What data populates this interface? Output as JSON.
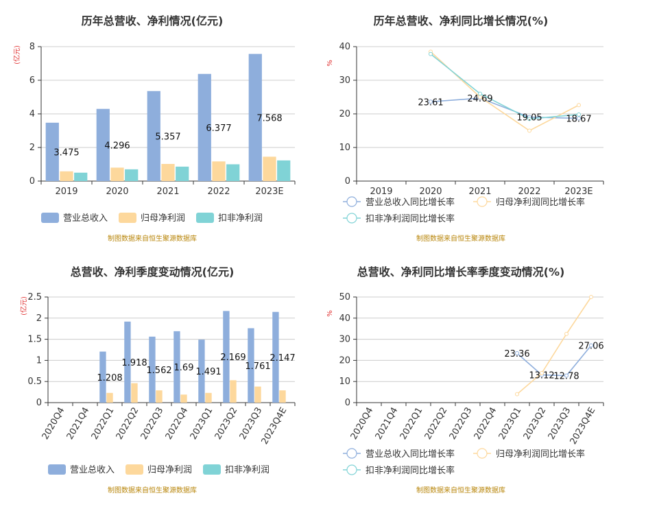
{
  "colors": {
    "revenue": "#8eaedc",
    "net_profit": "#fdd89c",
    "deducted_profit": "#80d3d6",
    "axis": "#333333",
    "grid": "#cccccc",
    "unit": "#e03030",
    "source": "#b8860b"
  },
  "source_text": "制图数据来自恒生聚源数据库",
  "chart_data": [
    {
      "id": "annual-amounts",
      "type": "bar",
      "title": "历年总营收、净利情况(亿元)",
      "ylabel": "(亿元)",
      "categories": [
        "2019",
        "2020",
        "2021",
        "2022",
        "2023E"
      ],
      "ylim": [
        0,
        8
      ],
      "yticks": [
        0,
        2,
        4,
        6,
        8
      ],
      "grid": true,
      "legend_position": "bottom",
      "series": [
        {
          "name": "营业总收入",
          "values": [
            3.475,
            4.296,
            5.357,
            6.377,
            7.568
          ],
          "labels": [
            "3.475",
            "4.296",
            "5.357",
            "6.377",
            "7.568"
          ]
        },
        {
          "name": "归母净利润",
          "values": [
            0.58,
            0.8,
            1.02,
            1.17,
            1.45
          ]
        },
        {
          "name": "扣非净利润",
          "values": [
            0.5,
            0.7,
            0.86,
            1.0,
            1.23
          ]
        }
      ]
    },
    {
      "id": "annual-growth",
      "type": "line",
      "title": "历年总营收、净利同比增长情况(%)",
      "ylabel": "%",
      "categories": [
        "2019",
        "2020",
        "2021",
        "2022",
        "2023E"
      ],
      "ylim": [
        0,
        40
      ],
      "yticks": [
        0,
        10,
        20,
        30,
        40
      ],
      "grid": true,
      "legend_position": "bottom",
      "series": [
        {
          "name": "营业总收入同比增长率",
          "values": [
            null,
            23.61,
            24.69,
            19.05,
            18.67
          ],
          "labels": [
            null,
            "23.61",
            "24.69",
            "19.05",
            "18.67"
          ]
        },
        {
          "name": "归母净利润同比增长率",
          "values": [
            null,
            38.5,
            25.0,
            15.0,
            22.6
          ]
        },
        {
          "name": "扣非净利润同比增长率",
          "values": [
            null,
            37.8,
            26.0,
            18.5,
            19.8
          ]
        }
      ]
    },
    {
      "id": "quarterly-amounts",
      "type": "bar",
      "title": "总营收、净利季度变动情况(亿元)",
      "ylabel": "(亿元)",
      "categories": [
        "2020Q4",
        "2021Q4",
        "2022Q1",
        "2022Q2",
        "2022Q3",
        "2022Q4",
        "2023Q1",
        "2023Q2",
        "2023Q3",
        "2023Q4E"
      ],
      "ylim": [
        0,
        2.5
      ],
      "yticks": [
        0,
        0.5,
        1,
        1.5,
        2,
        2.5
      ],
      "ytick_labels": [
        "0",
        "0.5",
        "1",
        "1.5",
        "2",
        "2.5"
      ],
      "grid": true,
      "legend_position": "bottom",
      "series": [
        {
          "name": "营业总收入",
          "values": [
            null,
            null,
            1.208,
            1.918,
            1.562,
            1.69,
            1.491,
            2.169,
            1.761,
            2.147
          ],
          "labels": [
            null,
            null,
            "1.208",
            "1.918",
            "1.562",
            "1.69",
            "1.491",
            "2.169",
            "1.761",
            "2.147"
          ]
        },
        {
          "name": "归母净利润",
          "values": [
            null,
            null,
            0.23,
            0.46,
            0.29,
            0.19,
            0.23,
            0.53,
            0.38,
            0.29
          ]
        },
        {
          "name": "扣非净利润",
          "values": [
            null,
            null,
            null,
            null,
            null,
            null,
            null,
            null,
            null,
            null
          ]
        }
      ]
    },
    {
      "id": "quarterly-growth",
      "type": "line",
      "title": "总营收、净利同比增长率季度变动情况(%)",
      "ylabel": "%",
      "categories": [
        "2020Q4",
        "2021Q4",
        "2022Q1",
        "2022Q2",
        "2022Q3",
        "2022Q4",
        "2023Q1",
        "2023Q2",
        "2023Q3",
        "2023Q4E"
      ],
      "ylim": [
        0,
        50
      ],
      "yticks": [
        0,
        10,
        20,
        30,
        40,
        50
      ],
      "grid": true,
      "legend_position": "bottom",
      "series": [
        {
          "name": "营业总收入同比增长率",
          "values": [
            null,
            null,
            null,
            null,
            null,
            null,
            23.36,
            13.12,
            12.78,
            27.06
          ],
          "labels": [
            null,
            null,
            null,
            null,
            null,
            null,
            "23.36",
            "13.12",
            "12.78",
            "27.06"
          ]
        },
        {
          "name": "归母净利润同比增长率",
          "values": [
            null,
            null,
            null,
            null,
            null,
            null,
            4.0,
            14.0,
            32.5,
            50.0
          ]
        },
        {
          "name": "扣非净利润同比增长率",
          "values": [
            null,
            null,
            null,
            null,
            null,
            null,
            null,
            null,
            null,
            null
          ]
        }
      ]
    }
  ]
}
